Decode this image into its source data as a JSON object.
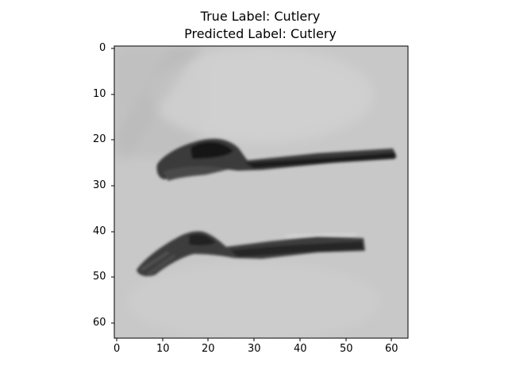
{
  "figure": {
    "title_line1": "True Label: Cutlery",
    "title_line2": "Predicted Label: Cutlery"
  },
  "axes": {
    "x_ticks": [
      "0",
      "10",
      "20",
      "30",
      "40",
      "50",
      "60"
    ],
    "y_ticks": [
      "0",
      "10",
      "20",
      "30",
      "40",
      "50",
      "60"
    ]
  },
  "image": {
    "subject": "two utensils (spoon and fork) on a light gray surface",
    "background_color": "#c9c9c9",
    "utensil_color": "#2a2a2a"
  }
}
